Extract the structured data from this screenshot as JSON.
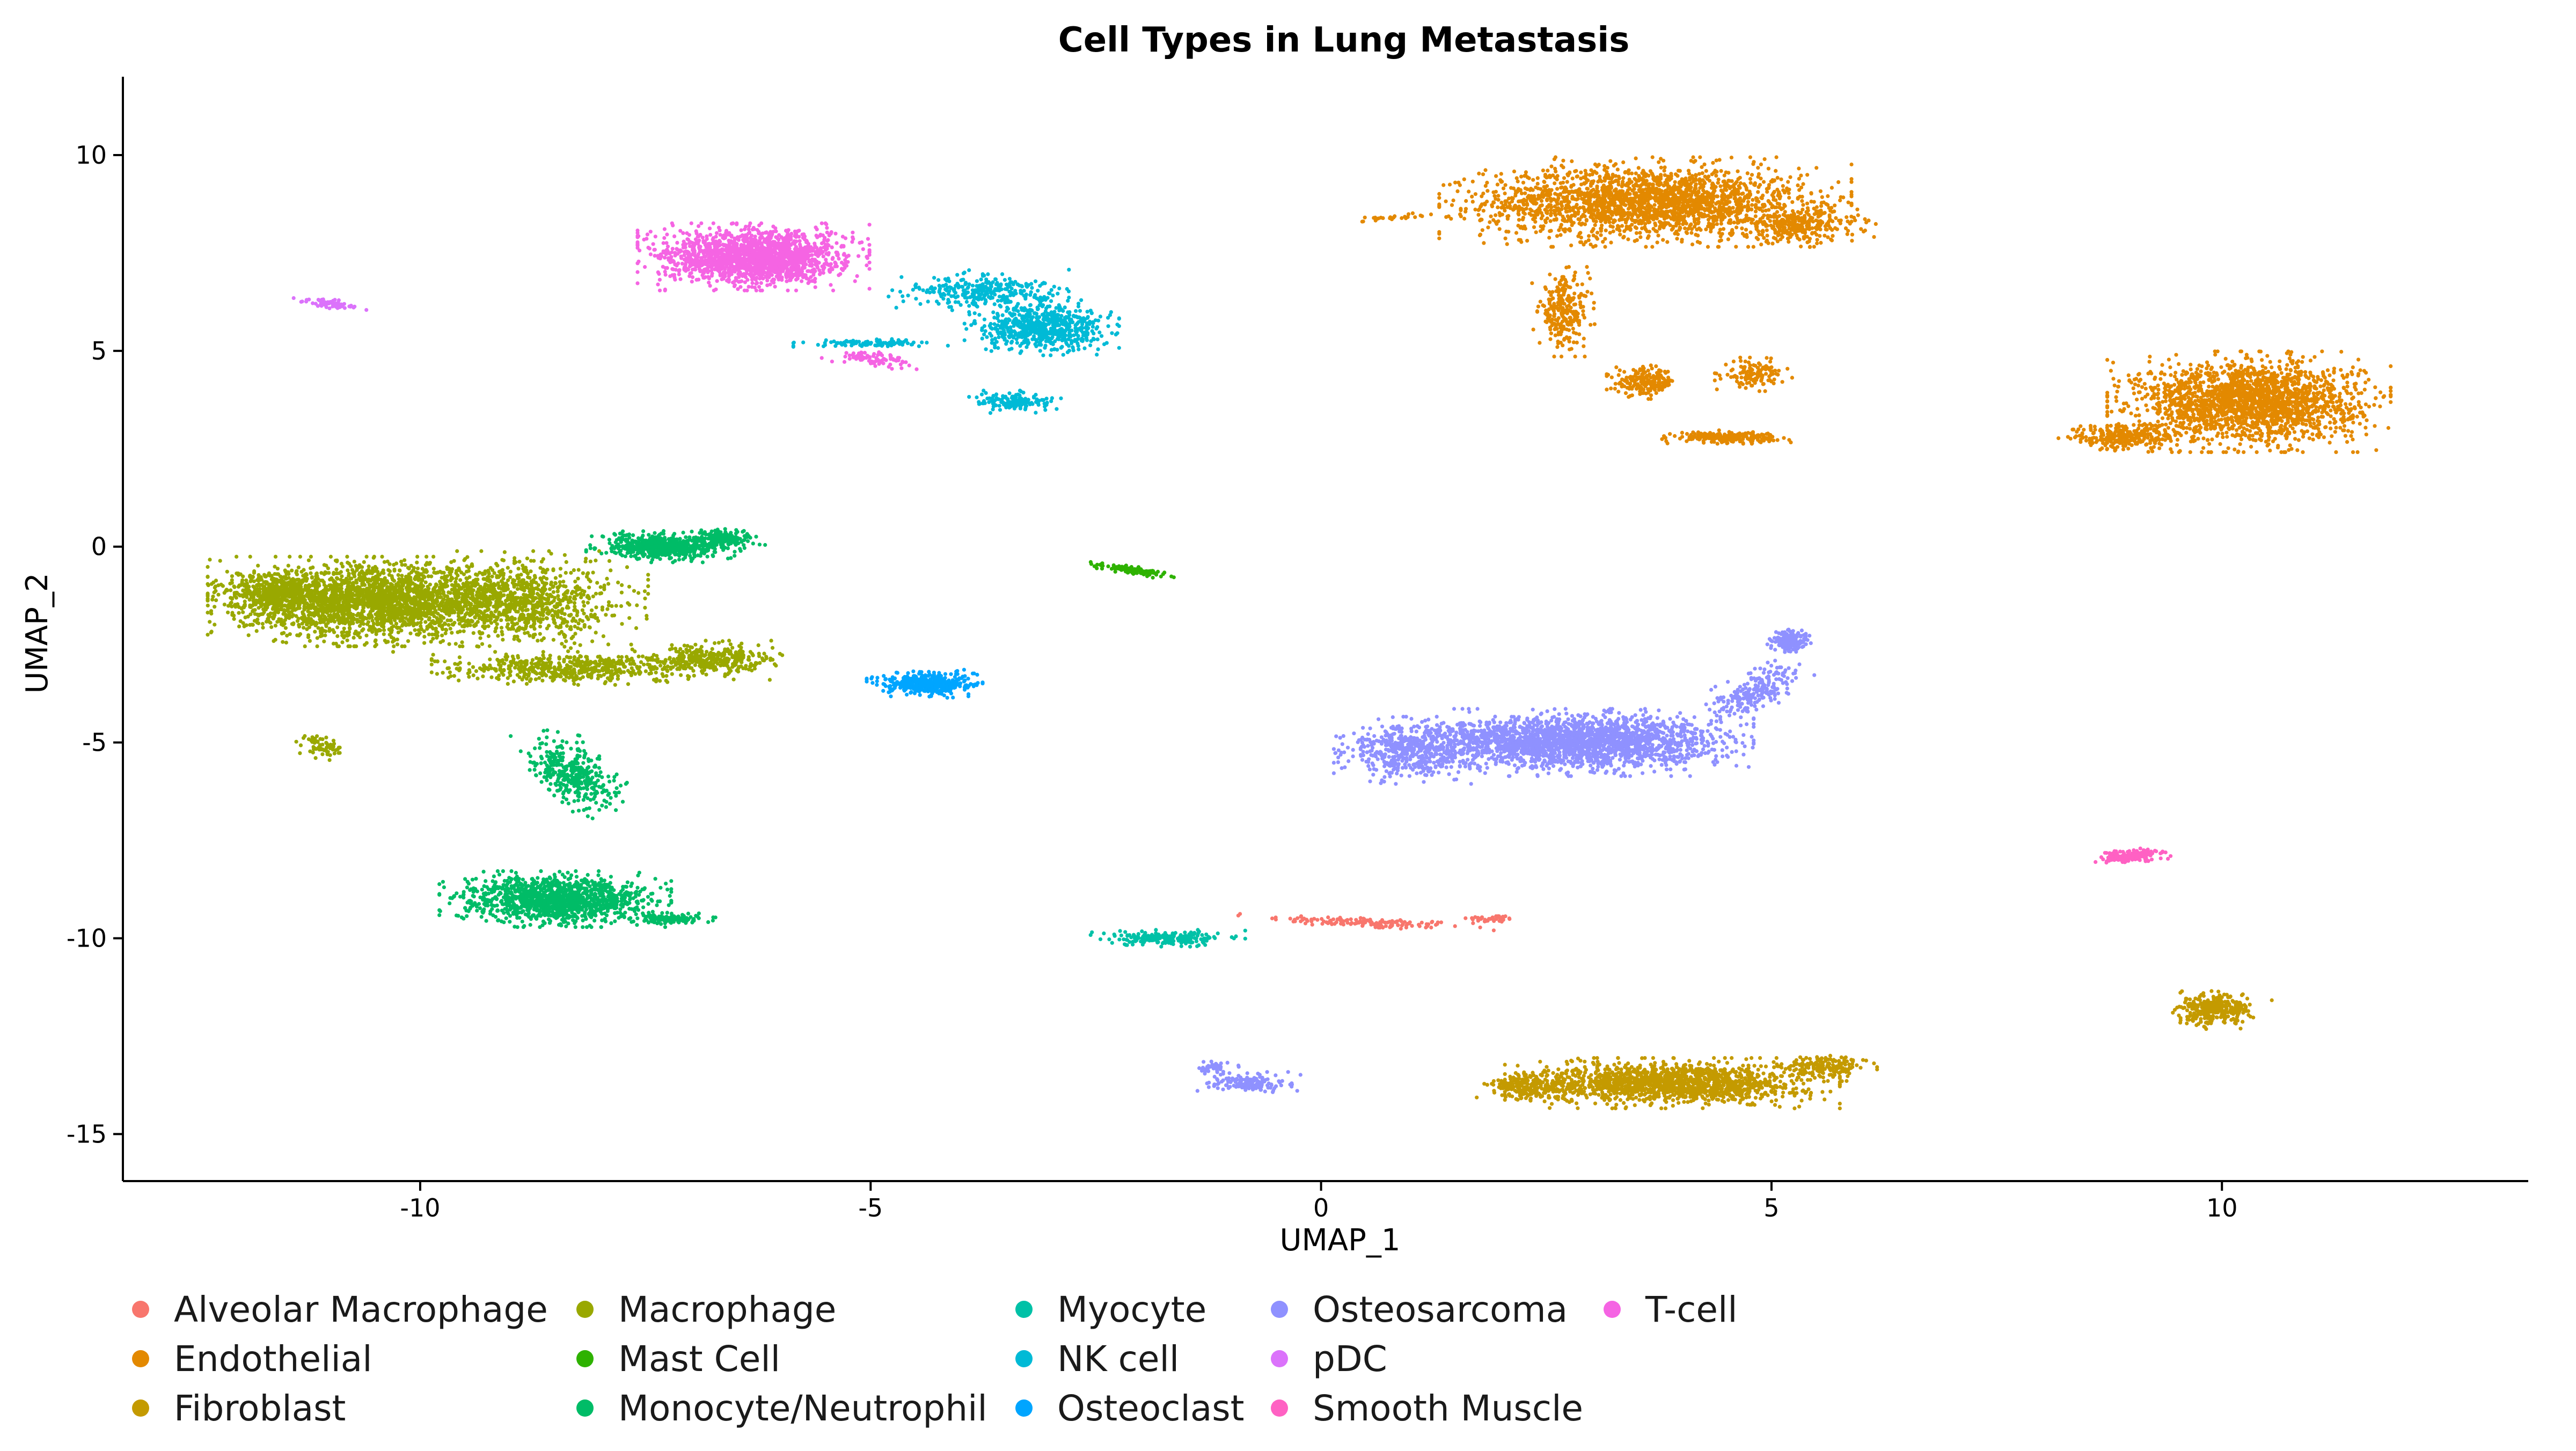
{
  "chart_data": {
    "type": "scatter",
    "title": "Cell Types in Lung Metastasis",
    "xlabel": "UMAP_1",
    "ylabel": "UMAP_2",
    "xlim": [
      -13.3,
      13.4
    ],
    "ylim": [
      -16.2,
      12.0
    ],
    "x_ticks": [
      -10,
      -5,
      0,
      5,
      10
    ],
    "y_ticks": [
      -15,
      -10,
      -5,
      0,
      5,
      10
    ],
    "x_tick_labels": [
      "-10",
      "-5",
      "0",
      "5",
      "10"
    ],
    "y_tick_labels": [
      "-15",
      "-10",
      "-5",
      "0",
      "5",
      "10"
    ],
    "grid": false,
    "legend_position": "bottom",
    "series": [
      {
        "name": "Alveolar Macrophage",
        "color": "#F8766D",
        "clusters": [
          {
            "cx": 0.5,
            "cy": -9.6,
            "sx": 1.0,
            "sy": 0.12,
            "rot": -6,
            "n": 140
          },
          {
            "cx": 1.9,
            "cy": -9.5,
            "sx": 0.25,
            "sy": 0.08,
            "rot": 0,
            "n": 40
          }
        ]
      },
      {
        "name": "Endothelial",
        "color": "#E38900",
        "clusters": [
          {
            "cx": 3.6,
            "cy": 8.8,
            "sx": 1.6,
            "sy": 0.8,
            "rot": 0,
            "n": 2200
          },
          {
            "cx": 5.3,
            "cy": 8.2,
            "sx": 0.6,
            "sy": 0.4,
            "rot": 0,
            "n": 300
          },
          {
            "cx": 2.7,
            "cy": 6.0,
            "sx": 0.25,
            "sy": 0.8,
            "rot": 0,
            "n": 250
          },
          {
            "cx": 3.6,
            "cy": 4.2,
            "sx": 0.3,
            "sy": 0.3,
            "rot": 0,
            "n": 200
          },
          {
            "cx": 4.8,
            "cy": 4.4,
            "sx": 0.3,
            "sy": 0.3,
            "rot": 0,
            "n": 130
          },
          {
            "cx": 4.5,
            "cy": 2.8,
            "sx": 0.5,
            "sy": 0.12,
            "rot": 0,
            "n": 220
          },
          {
            "cx": 0.8,
            "cy": 8.4,
            "sx": 0.3,
            "sy": 0.08,
            "rot": 10,
            "n": 25
          },
          {
            "cx": 10.3,
            "cy": 3.7,
            "sx": 1.1,
            "sy": 0.9,
            "rot": 0,
            "n": 2100
          },
          {
            "cx": 8.9,
            "cy": 2.8,
            "sx": 0.5,
            "sy": 0.3,
            "rot": 0,
            "n": 260
          }
        ]
      },
      {
        "name": "Fibroblast",
        "color": "#C49A00",
        "clusters": [
          {
            "cx": 3.9,
            "cy": -13.7,
            "sx": 1.3,
            "sy": 0.45,
            "rot": 0,
            "n": 1500
          },
          {
            "cx": 2.3,
            "cy": -13.8,
            "sx": 0.4,
            "sy": 0.3,
            "rot": 0,
            "n": 200
          },
          {
            "cx": 5.6,
            "cy": -13.3,
            "sx": 0.4,
            "sy": 0.25,
            "rot": 0,
            "n": 180
          },
          {
            "cx": 9.9,
            "cy": -11.8,
            "sx": 0.35,
            "sy": 0.35,
            "rot": -25,
            "n": 330
          }
        ]
      },
      {
        "name": "Macrophage",
        "color": "#99A800",
        "clusters": [
          {
            "cx": -10.5,
            "cy": -1.4,
            "sx": 1.3,
            "sy": 0.8,
            "rot": 0,
            "n": 2400
          },
          {
            "cx": -8.9,
            "cy": -1.4,
            "sx": 1.0,
            "sy": 0.9,
            "rot": 0,
            "n": 900
          },
          {
            "cx": -8.3,
            "cy": -3.1,
            "sx": 1.1,
            "sy": 0.3,
            "rot": 0,
            "n": 550
          },
          {
            "cx": -6.8,
            "cy": -2.9,
            "sx": 0.6,
            "sy": 0.35,
            "rot": 0,
            "n": 350
          },
          {
            "cx": -11.1,
            "cy": -5.1,
            "sx": 0.2,
            "sy": 0.3,
            "rot": 25,
            "n": 70
          },
          {
            "cx": -11.6,
            "cy": -1.2,
            "sx": 0.5,
            "sy": 0.5,
            "rot": 0,
            "n": 400
          }
        ]
      },
      {
        "name": "Mast Cell",
        "color": "#2EB200",
        "clusters": [
          {
            "cx": -2.1,
            "cy": -0.6,
            "sx": 0.35,
            "sy": 0.07,
            "rot": -20,
            "n": 130
          }
        ]
      },
      {
        "name": "Monocyte/Neutrophil",
        "color": "#00BC67",
        "clusters": [
          {
            "cx": -7.3,
            "cy": 0.0,
            "sx": 0.6,
            "sy": 0.28,
            "rot": 0,
            "n": 600
          },
          {
            "cx": -6.6,
            "cy": 0.2,
            "sx": 0.3,
            "sy": 0.2,
            "rot": 0,
            "n": 150
          },
          {
            "cx": -8.5,
            "cy": -9.0,
            "sx": 0.9,
            "sy": 0.5,
            "rot": 0,
            "n": 1300
          },
          {
            "cx": -8.3,
            "cy": -5.8,
            "sx": 0.35,
            "sy": 0.8,
            "rot": 20,
            "n": 380
          },
          {
            "cx": -7.2,
            "cy": -9.5,
            "sx": 0.4,
            "sy": 0.12,
            "rot": 0,
            "n": 120
          }
        ]
      },
      {
        "name": "Myocyte",
        "color": "#00C1A7",
        "clusters": [
          {
            "cx": -1.7,
            "cy": -10.0,
            "sx": 0.6,
            "sy": 0.15,
            "rot": 0,
            "n": 200
          }
        ]
      },
      {
        "name": "NK cell",
        "color": "#00BAD6",
        "clusters": [
          {
            "cx": -3.1,
            "cy": 5.6,
            "sx": 0.6,
            "sy": 0.5,
            "rot": 0,
            "n": 700
          },
          {
            "cx": -3.8,
            "cy": 6.5,
            "sx": 0.7,
            "sy": 0.4,
            "rot": 0,
            "n": 300
          },
          {
            "cx": -3.4,
            "cy": 3.7,
            "sx": 0.4,
            "sy": 0.2,
            "rot": 0,
            "n": 150
          },
          {
            "cx": -5.0,
            "cy": 5.2,
            "sx": 0.6,
            "sy": 0.08,
            "rot": 0,
            "n": 100
          }
        ]
      },
      {
        "name": "Osteoclast",
        "color": "#00A5FF",
        "clusters": [
          {
            "cx": -4.4,
            "cy": -3.5,
            "sx": 0.45,
            "sy": 0.25,
            "rot": 0,
            "n": 450
          }
        ]
      },
      {
        "name": "Osteosarcoma",
        "color": "#8F91FF",
        "clusters": [
          {
            "cx": 2.8,
            "cy": -5.0,
            "sx": 1.4,
            "sy": 0.6,
            "rot": 0,
            "n": 2200
          },
          {
            "cx": 1.0,
            "cy": -5.2,
            "sx": 0.6,
            "sy": 0.6,
            "rot": 0,
            "n": 500
          },
          {
            "cx": 4.8,
            "cy": -3.7,
            "sx": 0.3,
            "sy": 0.6,
            "rot": -30,
            "n": 220
          },
          {
            "cx": 5.2,
            "cy": -2.4,
            "sx": 0.2,
            "sy": 0.25,
            "rot": 0,
            "n": 150
          },
          {
            "cx": -0.8,
            "cy": -13.7,
            "sx": 0.4,
            "sy": 0.2,
            "rot": 0,
            "n": 150
          },
          {
            "cx": -1.2,
            "cy": -13.3,
            "sx": 0.2,
            "sy": 0.15,
            "rot": 0,
            "n": 40
          }
        ]
      },
      {
        "name": "pDC",
        "color": "#DB72FB",
        "clusters": [
          {
            "cx": -11.0,
            "cy": 6.2,
            "sx": 0.3,
            "sy": 0.08,
            "rot": -15,
            "n": 70
          }
        ]
      },
      {
        "name": "Smooth Muscle",
        "color": "#FF61C3",
        "clusters": [
          {
            "cx": 9.0,
            "cy": -7.9,
            "sx": 0.3,
            "sy": 0.12,
            "rot": 15,
            "n": 200
          }
        ]
      },
      {
        "name": "T-cell",
        "color": "#F564E3",
        "clusters": [
          {
            "cx": -6.3,
            "cy": 7.4,
            "sx": 0.9,
            "sy": 0.6,
            "rot": 0,
            "n": 1800
          },
          {
            "cx": -5.0,
            "cy": 4.8,
            "sx": 0.4,
            "sy": 0.15,
            "rot": -20,
            "n": 80
          }
        ]
      }
    ]
  }
}
